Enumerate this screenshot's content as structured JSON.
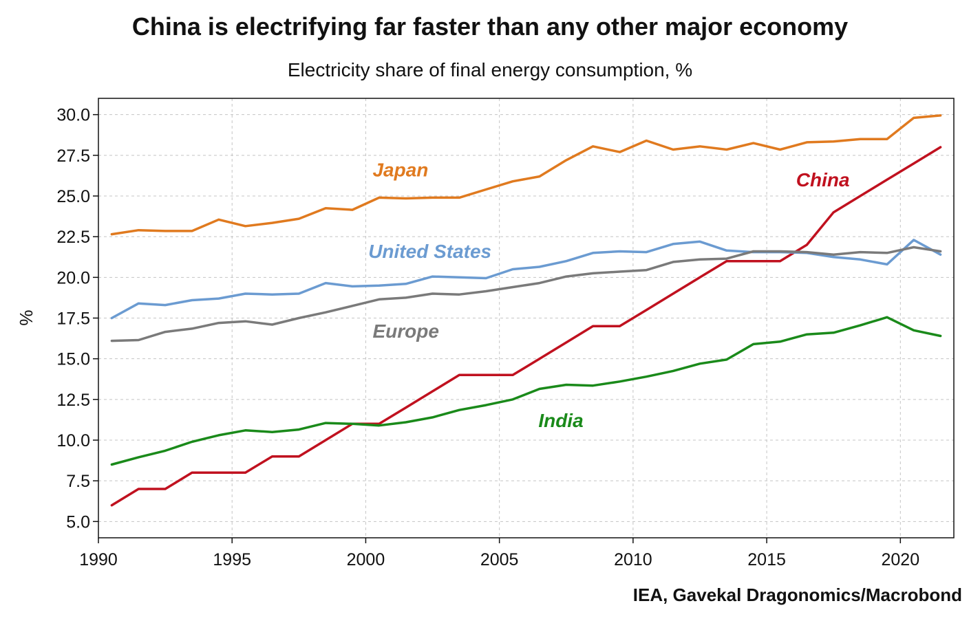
{
  "chart_data": {
    "type": "line",
    "title": "China is electrifying far faster than any other major economy",
    "subtitle": "Electricity share of final energy consumption, %",
    "ylabel": "%",
    "xlabel": "",
    "source": "IEA, Gavekal Dragonomics/Macrobond",
    "xlim": [
      1990,
      2022
    ],
    "ylim": [
      4.0,
      31.0
    ],
    "x_ticks": [
      "1990",
      "1995",
      "2000",
      "2005",
      "2010",
      "2015",
      "2020"
    ],
    "y_ticks": [
      "5.0",
      "7.5",
      "10.0",
      "12.5",
      "15.0",
      "17.5",
      "20.0",
      "22.5",
      "25.0",
      "27.5",
      "30.0"
    ],
    "grid": true,
    "x": [
      1990.5,
      1991.5,
      1992.5,
      1993.5,
      1994.5,
      1995.5,
      1996.5,
      1997.5,
      1998.5,
      1999.5,
      2000.5,
      2001.5,
      2002.5,
      2003.5,
      2004.5,
      2005.5,
      2006.5,
      2007.5,
      2008.5,
      2009.5,
      2010.5,
      2011.5,
      2012.5,
      2013.5,
      2014.5,
      2015.5,
      2016.5,
      2017.5,
      2018.5,
      2019.5,
      2020.5,
      2021.5
    ],
    "series": [
      {
        "name": "Japan",
        "color": "#e07a1f",
        "values": [
          22.65,
          22.9,
          22.85,
          22.85,
          23.55,
          23.15,
          23.35,
          23.6,
          24.25,
          24.15,
          24.9,
          24.85,
          24.9,
          24.9,
          25.4,
          25.9,
          26.2,
          27.2,
          28.05,
          27.7,
          28.4,
          27.85,
          28.05,
          27.85,
          28.25,
          27.85,
          28.3,
          28.35,
          28.5,
          28.5,
          29.8,
          29.95
        ]
      },
      {
        "name": "China",
        "color": "#c0111f",
        "values": [
          6.0,
          7.0,
          7.0,
          8.0,
          8.0,
          8.0,
          9.0,
          9.0,
          10.0,
          11.0,
          11.0,
          12.0,
          13.0,
          14.0,
          14.0,
          14.0,
          15.0,
          16.0,
          17.0,
          17.0,
          18.0,
          19.0,
          20.0,
          21.0,
          21.0,
          21.0,
          22.0,
          24.0,
          25.0,
          26.0,
          27.0,
          28.0
        ]
      },
      {
        "name": "United States",
        "color": "#6b9bd1",
        "values": [
          17.5,
          18.4,
          18.3,
          18.6,
          18.7,
          19.0,
          18.95,
          19.0,
          19.65,
          19.45,
          19.5,
          19.6,
          20.05,
          20.0,
          19.95,
          20.5,
          20.65,
          21.0,
          21.5,
          21.6,
          21.55,
          22.05,
          22.2,
          21.65,
          21.55,
          21.55,
          21.5,
          21.25,
          21.1,
          20.8,
          22.3,
          21.4
        ]
      },
      {
        "name": "Europe",
        "color": "#7a7a7a",
        "values": [
          16.1,
          16.15,
          16.65,
          16.85,
          17.2,
          17.3,
          17.1,
          17.5,
          17.85,
          18.25,
          18.65,
          18.75,
          19.0,
          18.95,
          19.15,
          19.4,
          19.65,
          20.05,
          20.25,
          20.35,
          20.45,
          20.95,
          21.1,
          21.15,
          21.6,
          21.6,
          21.55,
          21.4,
          21.55,
          21.5,
          21.85,
          21.6
        ]
      },
      {
        "name": "India",
        "color": "#1a8a1a",
        "values": [
          8.5,
          8.95,
          9.35,
          9.9,
          10.3,
          10.6,
          10.5,
          10.65,
          11.05,
          11.0,
          10.9,
          11.1,
          11.4,
          11.85,
          12.15,
          12.5,
          13.15,
          13.4,
          13.35,
          13.6,
          13.9,
          14.25,
          14.7,
          14.95,
          15.9,
          16.05,
          16.5,
          16.6,
          17.05,
          17.55,
          16.75,
          16.4
        ]
      }
    ],
    "series_labels": [
      {
        "text": "Japan",
        "x": 2001.3,
        "y": 26.2
      },
      {
        "text": "China",
        "x": 2017.1,
        "y": 25.6
      },
      {
        "text": "United States",
        "x": 2002.4,
        "y": 21.2
      },
      {
        "text": "Europe",
        "x": 2001.5,
        "y": 16.3
      },
      {
        "text": "India",
        "x": 2007.3,
        "y": 10.8
      }
    ]
  }
}
